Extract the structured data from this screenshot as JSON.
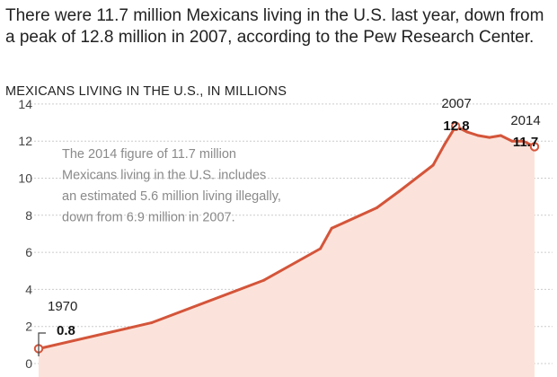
{
  "headline": "There were 11.7 million Mexicans living in the U.S. last year, down from a peak of 12.8 million in 2007, according to the Pew Research Center.",
  "colors": {
    "line": "#d4553a",
    "area": "#fbe3db",
    "marker_fill": "#ffffff"
  },
  "chart_data": {
    "type": "area",
    "title": "MEXICANS LIVING IN THE U.S., IN MILLIONS",
    "xlabel": "",
    "ylabel": "",
    "ylim": [
      0,
      14
    ],
    "xlim": [
      1970,
      2014
    ],
    "y_ticks": [
      0,
      2,
      4,
      6,
      8,
      10,
      12,
      14
    ],
    "grid": true,
    "series": [
      {
        "x": [
          1970,
          1980,
          1990,
          1995,
          1996,
          2000,
          2002,
          2005,
          2006,
          2007,
          2008,
          2009,
          2010,
          2011,
          2012,
          2013,
          2014
        ],
        "values": [
          0.8,
          2.2,
          4.5,
          6.2,
          7.3,
          8.4,
          9.3,
          10.7,
          11.8,
          12.8,
          12.5,
          12.3,
          12.2,
          12.3,
          12.0,
          12.0,
          11.7
        ]
      }
    ],
    "annotations": [
      {
        "year": "1970",
        "value": "0.8"
      },
      {
        "year": "2007",
        "value": "12.8"
      },
      {
        "year": "2014",
        "value": "11.7"
      }
    ],
    "note_lines": [
      "The 2014 figure of 11.7 million",
      "Mexicans living in the U.S. includes",
      "an estimated 5.6 million living illegally,",
      "down from 6.9 million in 2007."
    ]
  }
}
